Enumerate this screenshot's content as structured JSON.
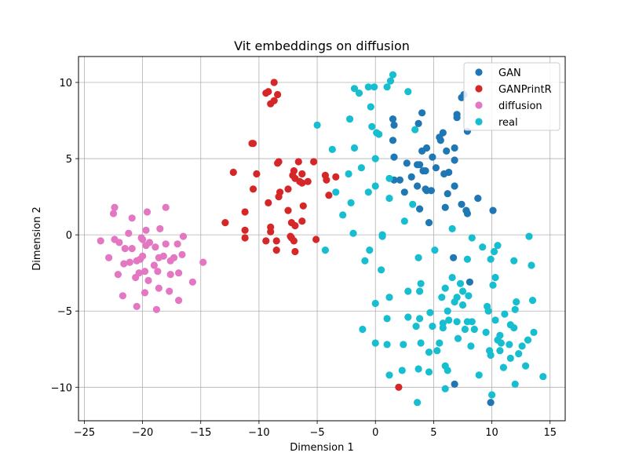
{
  "chart_data": {
    "type": "scatter",
    "title": "Vit embeddings on diffusion",
    "xlabel": "Dimension 1",
    "ylabel": "Dimension 2",
    "xlim": [
      -25.5,
      16.3
    ],
    "ylim": [
      -12.2,
      11.7
    ],
    "xticks": [
      -25,
      -20,
      -15,
      -10,
      -5,
      0,
      5,
      10,
      15
    ],
    "yticks": [
      -10,
      -5,
      0,
      5,
      10
    ],
    "xtick_labels": [
      "−25",
      "−20",
      "−15",
      "−10",
      "−5",
      "0",
      "5",
      "10",
      "15"
    ],
    "ytick_labels": [
      "−10",
      "−5",
      "0",
      "5",
      "10"
    ],
    "grid": true,
    "legend_position": "top-right",
    "series": [
      {
        "name": "GAN",
        "color": "#1f77b4",
        "points": [
          [
            1.5,
            7.6
          ],
          [
            1.6,
            7.2
          ],
          [
            1.5,
            6.2
          ],
          [
            1.6,
            5.1
          ],
          [
            1.6,
            3.6
          ],
          [
            2.7,
            4.7
          ],
          [
            2.5,
            2.8
          ],
          [
            3.1,
            3.8
          ],
          [
            3.6,
            3.2
          ],
          [
            3.8,
            4.6
          ],
          [
            3.6,
            4.6
          ],
          [
            4.0,
            5.5
          ],
          [
            4.1,
            4.2
          ],
          [
            4.4,
            5.7
          ],
          [
            4.3,
            3.0
          ],
          [
            4.8,
            2.9
          ],
          [
            4.9,
            5.1
          ],
          [
            4.6,
            0.8
          ],
          [
            5.6,
            6.2
          ],
          [
            5.8,
            6.7
          ],
          [
            5.9,
            4.0
          ],
          [
            6.1,
            5.5
          ],
          [
            6.3,
            4.1
          ],
          [
            6.8,
            3.2
          ],
          [
            6.2,
            2.7
          ],
          [
            6.0,
            1.8
          ],
          [
            6.8,
            4.9
          ],
          [
            6.8,
            5.7
          ],
          [
            7.0,
            7.9
          ],
          [
            7.0,
            7.7
          ],
          [
            7.4,
            9.0
          ],
          [
            7.6,
            9.2
          ],
          [
            7.9,
            6.8
          ],
          [
            7.4,
            2.0
          ],
          [
            7.8,
            1.6
          ],
          [
            7.9,
            1.4
          ],
          [
            8.8,
            2.4
          ],
          [
            10.1,
            1.6
          ],
          [
            6.7,
            -1.5
          ],
          [
            8.1,
            -3.1
          ],
          [
            6.8,
            -9.8
          ],
          [
            9.9,
            -11.0
          ],
          [
            4.0,
            8.0
          ],
          [
            4.3,
            4.2
          ],
          [
            3.7,
            7.3
          ],
          [
            4.4,
            2.9
          ],
          [
            3.8,
            1.7
          ],
          [
            5.2,
            4.4
          ],
          [
            5.5,
            6.4
          ],
          [
            2.1,
            3.6
          ]
        ]
      },
      {
        "name": "GANPrintR",
        "color": "#d62728",
        "points": [
          [
            -9.0,
            8.6
          ],
          [
            -8.7,
            8.8
          ],
          [
            -8.7,
            10.0
          ],
          [
            -9.2,
            9.4
          ],
          [
            -9.4,
            9.3
          ],
          [
            -8.4,
            9.2
          ],
          [
            -10.6,
            6.0
          ],
          [
            -10.5,
            6.0
          ],
          [
            -12.2,
            4.1
          ],
          [
            -10.2,
            4.0
          ],
          [
            -8.4,
            4.7
          ],
          [
            -8.3,
            4.8
          ],
          [
            -7.1,
            3.9
          ],
          [
            -7.0,
            4.2
          ],
          [
            -6.6,
            4.8
          ],
          [
            -6.3,
            4.0
          ],
          [
            -5.8,
            3.5
          ],
          [
            -5.3,
            4.8
          ],
          [
            -4.3,
            3.9
          ],
          [
            -4.2,
            3.6
          ],
          [
            -3.4,
            3.8
          ],
          [
            -10.5,
            3.0
          ],
          [
            -8.2,
            2.8
          ],
          [
            -8.3,
            2.5
          ],
          [
            -9.2,
            2.1
          ],
          [
            -7.5,
            3.0
          ],
          [
            -6.9,
            3.7
          ],
          [
            -6.5,
            3.5
          ],
          [
            -6.3,
            3.4
          ],
          [
            -4.0,
            2.6
          ],
          [
            -6.2,
            1.9
          ],
          [
            -7.5,
            1.6
          ],
          [
            -11.2,
            1.5
          ],
          [
            -11.2,
            0.3
          ],
          [
            -11.2,
            -0.2
          ],
          [
            -12.9,
            0.8
          ],
          [
            -9.0,
            0.5
          ],
          [
            -9.0,
            0.2
          ],
          [
            -9.4,
            -0.4
          ],
          [
            -8.5,
            -0.4
          ],
          [
            -8.5,
            -1.0
          ],
          [
            -7.3,
            -0.1
          ],
          [
            -7.2,
            -0.2
          ],
          [
            -7.2,
            0.8
          ],
          [
            -6.9,
            0.6
          ],
          [
            -6.3,
            0.9
          ],
          [
            -5.1,
            -0.3
          ],
          [
            -6.9,
            -1.1
          ],
          [
            -7.0,
            -0.4
          ],
          [
            2.0,
            -10.0
          ]
        ]
      },
      {
        "name": "diffusion",
        "color": "#e377c2",
        "points": [
          [
            -22.4,
            1.8
          ],
          [
            -22.5,
            1.4
          ],
          [
            -20.9,
            1.1
          ],
          [
            -19.6,
            1.5
          ],
          [
            -18.0,
            1.8
          ],
          [
            -21.2,
            0.1
          ],
          [
            -19.7,
            0.3
          ],
          [
            -18.5,
            0.4
          ],
          [
            -16.5,
            -0.1
          ],
          [
            -23.6,
            -0.4
          ],
          [
            -22.4,
            -0.3
          ],
          [
            -22.0,
            -0.5
          ],
          [
            -20.1,
            -0.2
          ],
          [
            -20.0,
            -0.3
          ],
          [
            -19.4,
            -0.5
          ],
          [
            -18.0,
            -0.6
          ],
          [
            -17.0,
            -0.6
          ],
          [
            -20.9,
            -0.9
          ],
          [
            -18.9,
            -0.8
          ],
          [
            -22.9,
            -1.5
          ],
          [
            -21.6,
            -1.9
          ],
          [
            -21.1,
            -1.8
          ],
          [
            -20.5,
            -1.7
          ],
          [
            -20.0,
            -1.4
          ],
          [
            -18.6,
            -1.5
          ],
          [
            -18.2,
            -1.4
          ],
          [
            -16.6,
            -1.3
          ],
          [
            -17.6,
            -1.7
          ],
          [
            -22.1,
            -2.6
          ],
          [
            -20.6,
            -2.8
          ],
          [
            -20.3,
            -2.5
          ],
          [
            -19.8,
            -2.4
          ],
          [
            -18.7,
            -2.4
          ],
          [
            -17.6,
            -2.6
          ],
          [
            -16.9,
            -2.5
          ],
          [
            -15.7,
            -3.1
          ],
          [
            -19.5,
            -3.0
          ],
          [
            -18.6,
            -3.5
          ],
          [
            -19.8,
            -3.8
          ],
          [
            -17.7,
            -3.7
          ],
          [
            -21.7,
            -4.0
          ],
          [
            -20.5,
            -4.7
          ],
          [
            -18.8,
            -4.9
          ],
          [
            -16.9,
            -4.3
          ],
          [
            -14.8,
            -1.8
          ],
          [
            -17.3,
            -1.5
          ],
          [
            -19.7,
            -0.7
          ],
          [
            -21.5,
            -0.9
          ],
          [
            -20.2,
            -1.6
          ],
          [
            -19.0,
            -2.0
          ]
        ]
      },
      {
        "name": "real",
        "color": "#17becf",
        "points": [
          [
            -1.8,
            9.6
          ],
          [
            -1.4,
            9.3
          ],
          [
            -0.6,
            9.7
          ],
          [
            -0.1,
            9.7
          ],
          [
            1.0,
            9.7
          ],
          [
            1.3,
            10.1
          ],
          [
            1.5,
            10.5
          ],
          [
            2.8,
            9.4
          ],
          [
            -0.4,
            8.4
          ],
          [
            -2.2,
            7.6
          ],
          [
            -0.3,
            7.1
          ],
          [
            0.1,
            6.7
          ],
          [
            0.3,
            6.6
          ],
          [
            3.4,
            6.9
          ],
          [
            -5.0,
            7.2
          ],
          [
            -1.8,
            5.7
          ],
          [
            -3.7,
            5.6
          ],
          [
            0.0,
            5.0
          ],
          [
            -1.2,
            4.4
          ],
          [
            -2.3,
            4.0
          ],
          [
            1.2,
            3.7
          ],
          [
            0.0,
            3.2
          ],
          [
            -0.6,
            2.8
          ],
          [
            -3.4,
            2.8
          ],
          [
            1.2,
            2.4
          ],
          [
            3.2,
            2.0
          ],
          [
            -2.1,
            2.1
          ],
          [
            -2.8,
            1.3
          ],
          [
            2.5,
            0.9
          ],
          [
            6.6,
            0.4
          ],
          [
            -1.9,
            0.1
          ],
          [
            0.6,
            0.0
          ],
          [
            0.6,
            -0.1
          ],
          [
            -4.3,
            -1.0
          ],
          [
            -0.5,
            -1.0
          ],
          [
            -0.9,
            -1.7
          ],
          [
            0.5,
            -2.3
          ],
          [
            5.1,
            -1.0
          ],
          [
            8.3,
            -0.2
          ],
          [
            9.2,
            -0.8
          ],
          [
            10.5,
            -0.7
          ],
          [
            13.2,
            -0.1
          ],
          [
            10.2,
            -1.1
          ],
          [
            9.9,
            -1.6
          ],
          [
            7.9,
            -1.6
          ],
          [
            11.9,
            -1.7
          ],
          [
            13.4,
            -2.0
          ],
          [
            3.7,
            -1.5
          ],
          [
            10.3,
            -2.8
          ],
          [
            10.1,
            -3.3
          ],
          [
            7.3,
            -3.2
          ],
          [
            6.6,
            -2.8
          ],
          [
            3.9,
            -3.2
          ],
          [
            6.0,
            -3.5
          ],
          [
            5.7,
            -4.1
          ],
          [
            7.5,
            -3.7
          ],
          [
            7.0,
            -4.1
          ],
          [
            8.0,
            -4.0
          ],
          [
            12.1,
            -4.4
          ],
          [
            13.5,
            -4.3
          ],
          [
            1.2,
            -4.1
          ],
          [
            0.0,
            -4.5
          ],
          [
            3.8,
            -3.7
          ],
          [
            6.8,
            -4.4
          ],
          [
            7.5,
            -4.6
          ],
          [
            9.6,
            -4.7
          ],
          [
            12.0,
            -4.9
          ],
          [
            4.7,
            -5.1
          ],
          [
            6.2,
            -5.0
          ],
          [
            2.8,
            -5.4
          ],
          [
            1.0,
            -5.5
          ],
          [
            3.8,
            -5.5
          ],
          [
            3.5,
            -6.0
          ],
          [
            4.9,
            -6.0
          ],
          [
            5.8,
            -5.8
          ],
          [
            6.3,
            -5.6
          ],
          [
            7.0,
            -5.7
          ],
          [
            7.9,
            -5.7
          ],
          [
            8.3,
            -5.7
          ],
          [
            9.7,
            -5.0
          ],
          [
            10.3,
            -5.6
          ],
          [
            11.1,
            -5.2
          ],
          [
            11.6,
            -5.9
          ],
          [
            11.9,
            -6.1
          ],
          [
            13.6,
            -6.4
          ],
          [
            -1.1,
            -6.2
          ],
          [
            7.7,
            -6.2
          ],
          [
            8.5,
            -6.2
          ],
          [
            10.7,
            -6.6
          ],
          [
            0.0,
            -7.1
          ],
          [
            1.0,
            -7.2
          ],
          [
            2.4,
            -7.2
          ],
          [
            3.9,
            -7.1
          ],
          [
            5.5,
            -7.1
          ],
          [
            7.1,
            -6.8
          ],
          [
            8.2,
            -7.3
          ],
          [
            10.5,
            -6.9
          ],
          [
            10.8,
            -7.1
          ],
          [
            11.5,
            -7.2
          ],
          [
            13.1,
            -6.9
          ],
          [
            12.6,
            -7.3
          ],
          [
            4.6,
            -7.7
          ],
          [
            5.3,
            -7.6
          ],
          [
            9.8,
            -7.6
          ],
          [
            9.9,
            -7.9
          ],
          [
            10.7,
            -7.6
          ],
          [
            11.6,
            -8.1
          ],
          [
            12.3,
            -7.8
          ],
          [
            2.3,
            -8.9
          ],
          [
            3.7,
            -8.8
          ],
          [
            4.6,
            -9.0
          ],
          [
            6.0,
            -8.6
          ],
          [
            6.2,
            -8.9
          ],
          [
            8.9,
            -9.2
          ],
          [
            11.0,
            -8.7
          ],
          [
            12.9,
            -8.6
          ],
          [
            1.2,
            -9.2
          ],
          [
            6.0,
            -10.1
          ],
          [
            12.0,
            -9.8
          ],
          [
            14.4,
            -9.3
          ],
          [
            10.0,
            -10.5
          ],
          [
            3.6,
            -11.0
          ],
          [
            5.8,
            -6.1
          ],
          [
            9.5,
            -6.4
          ],
          [
            2.8,
            -3.7
          ]
        ]
      }
    ]
  }
}
